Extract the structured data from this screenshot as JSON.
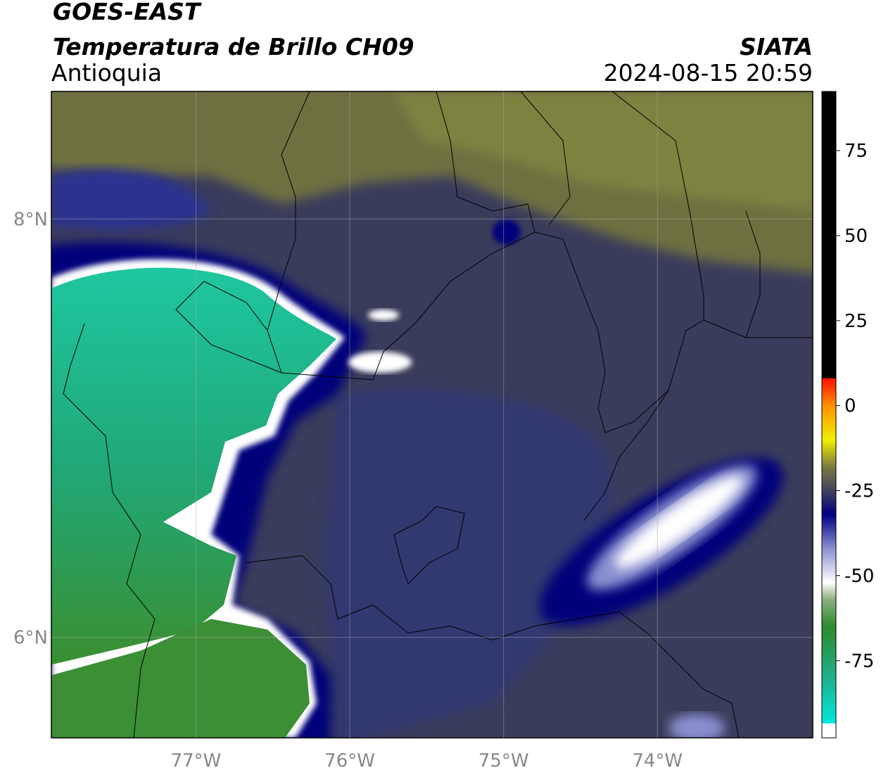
{
  "header": {
    "satellite": "GOES-EAST",
    "product": "Temperatura de Brillo CH09",
    "region": "Antioquia",
    "agency": "SIATA",
    "datetime": "2024-08-15 20:59"
  },
  "map": {
    "xlim": [
      -77.94,
      -72.99
    ],
    "ylim": [
      5.52,
      8.61
    ],
    "xticks": [
      {
        "value": -77,
        "label": "77°W"
      },
      {
        "value": -76,
        "label": "76°W"
      },
      {
        "value": -75,
        "label": "75°W"
      },
      {
        "value": -74,
        "label": "74°W"
      }
    ],
    "yticks": [
      {
        "value": 8,
        "label": "8°N"
      },
      {
        "value": 6,
        "label": "6°N"
      }
    ],
    "grid": true
  },
  "colorbar": {
    "lim": [
      -97.7,
      92.4
    ],
    "ticks": [
      -75,
      -50,
      -25,
      0,
      25,
      50,
      75
    ],
    "colors": [
      {
        "value": -97.7,
        "color": "#ffffff"
      },
      {
        "value": -93.5,
        "color": "#ffffff"
      },
      {
        "value": -93.4,
        "color": "#00e8e0"
      },
      {
        "value": -80,
        "color": "#1fb08a"
      },
      {
        "value": -65,
        "color": "#2e8a2a"
      },
      {
        "value": -57,
        "color": "#8ab080"
      },
      {
        "value": -52,
        "color": "#ffffff"
      },
      {
        "value": -42,
        "color": "#8a8fd0"
      },
      {
        "value": -32,
        "color": "#000080"
      },
      {
        "value": -24,
        "color": "#4a4a5a"
      },
      {
        "value": -18,
        "color": "#7a7a40"
      },
      {
        "value": -10,
        "color": "#f0f000"
      },
      {
        "value": 0,
        "color": "#ff9000"
      },
      {
        "value": 8,
        "color": "#ff1000"
      },
      {
        "value": 8.1,
        "color": "#000000"
      },
      {
        "value": 92.4,
        "color": "#000000"
      }
    ]
  }
}
